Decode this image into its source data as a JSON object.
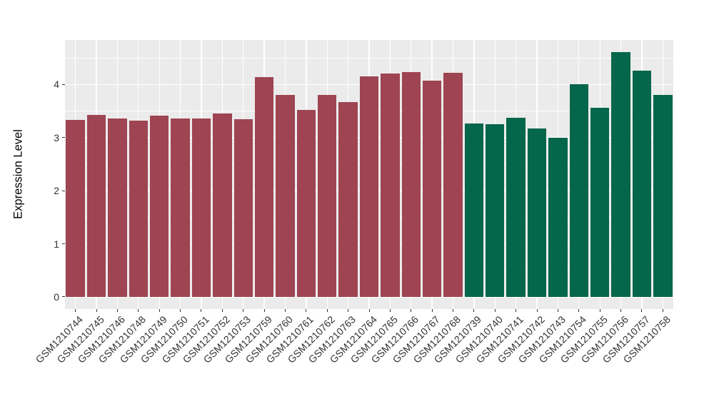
{
  "figure": {
    "background_color": "#FFFFFF",
    "panel_background_color": "#EBEBEB",
    "gridline_color": "#FFFFFF",
    "tick_text_color": "#333333",
    "axis_title_color": "#000000"
  },
  "chart_data": {
    "type": "bar",
    "title": "",
    "xlabel": "",
    "ylabel": "Expression Level",
    "yticks": [
      0,
      1,
      2,
      3,
      4
    ],
    "ylim": [
      -0.23,
      4.84
    ],
    "grid": {
      "horizontal_major": [
        0,
        1,
        2,
        3,
        4
      ],
      "horizontal_minor": [
        0.5,
        1.5,
        2.5,
        3.5,
        4.5
      ],
      "vertical_major": "category-centers"
    },
    "legend": "none",
    "bar_width_fraction": 0.9,
    "series": [
      {
        "color": "#9E4452",
        "categories": [
          "GSM1210744",
          "GSM1210745",
          "GSM1210746",
          "GSM1210748",
          "GSM1210749",
          "GSM1210750",
          "GSM1210751",
          "GSM1210752",
          "GSM1210753",
          "GSM1210759",
          "GSM1210760",
          "GSM1210761",
          "GSM1210762",
          "GSM1210763",
          "GSM1210764",
          "GSM1210765",
          "GSM1210766",
          "GSM1210767",
          "GSM1210768"
        ],
        "values": [
          3.33,
          3.43,
          3.36,
          3.32,
          3.42,
          3.36,
          3.36,
          3.45,
          3.35,
          4.14,
          3.8,
          3.52,
          3.81,
          3.67,
          4.15,
          4.21,
          4.23,
          4.07,
          4.22
        ]
      },
      {
        "color": "#04664A",
        "categories": [
          "GSM1210739",
          "GSM1210740",
          "GSM1210741",
          "GSM1210742",
          "GSM1210743",
          "GSM1210754",
          "GSM1210755",
          "GSM1210756",
          "GSM1210757",
          "GSM1210758"
        ],
        "values": [
          3.26,
          3.25,
          3.37,
          3.17,
          3.0,
          4.0,
          3.56,
          4.61,
          4.26,
          3.81
        ]
      }
    ]
  }
}
